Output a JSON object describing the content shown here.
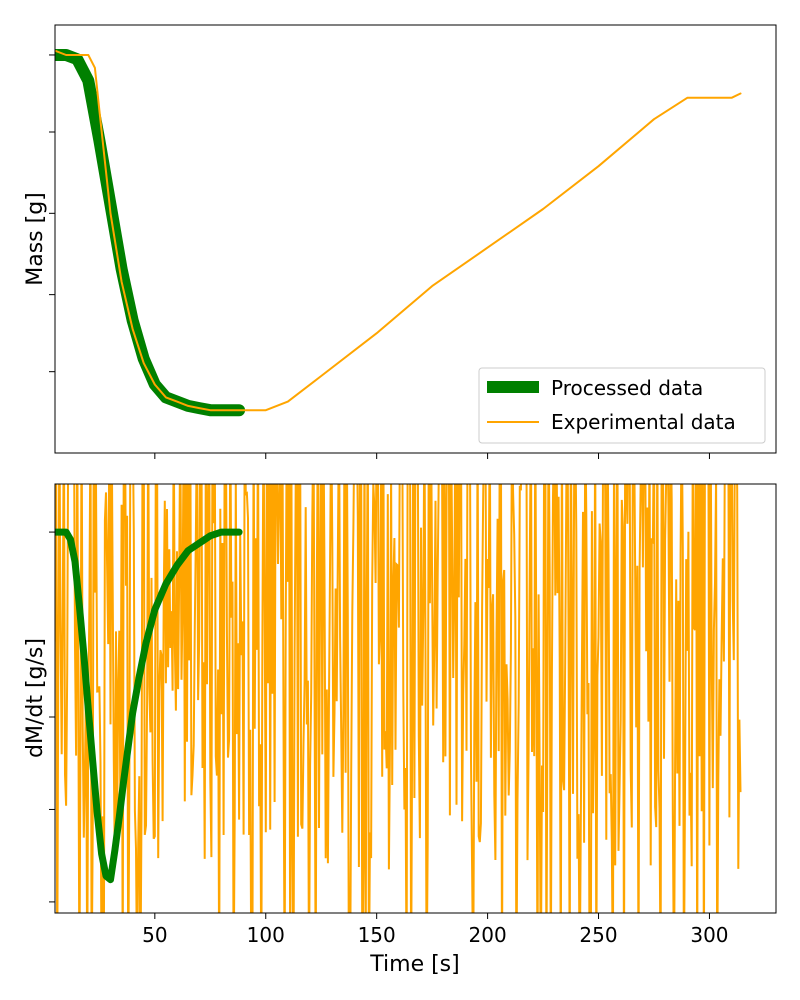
{
  "chart_data": [
    {
      "type": "line",
      "ylabel": "Mass [g]",
      "xlabel": "",
      "xlim": [
        5,
        330
      ],
      "x_ticks": [
        50,
        100,
        150,
        200,
        250,
        300
      ],
      "ylim": [
        0,
        1
      ],
      "y_ticks": [
        0.93,
        0.75,
        0.56,
        0.37,
        0.19
      ],
      "y_tick_labels_shown": false,
      "grid": false,
      "legend_position": "lower-right",
      "legend": [
        "Processed data",
        "Experimental data"
      ],
      "series": [
        {
          "name": "Processed data",
          "color": "#008000",
          "x": [
            5,
            10,
            15,
            20,
            25,
            30,
            35,
            40,
            45,
            50,
            55,
            60,
            65,
            70,
            75,
            80,
            85,
            88
          ],
          "y": [
            0.93,
            0.93,
            0.92,
            0.87,
            0.73,
            0.58,
            0.43,
            0.31,
            0.22,
            0.16,
            0.13,
            0.12,
            0.11,
            0.105,
            0.1,
            0.1,
            0.1,
            0.1
          ]
        },
        {
          "name": "Experimental data",
          "color": "#FFA500",
          "x": [
            5,
            10,
            15,
            20,
            23,
            25,
            30,
            35,
            40,
            45,
            50,
            55,
            60,
            65,
            70,
            75,
            80,
            85,
            90,
            95,
            100,
            110,
            125,
            150,
            175,
            200,
            225,
            250,
            275,
            290,
            300,
            310,
            314
          ],
          "y": [
            0.94,
            0.93,
            0.93,
            0.93,
            0.9,
            0.8,
            0.56,
            0.4,
            0.29,
            0.21,
            0.16,
            0.13,
            0.12,
            0.11,
            0.105,
            0.1,
            0.1,
            0.1,
            0.1,
            0.1,
            0.1,
            0.12,
            0.18,
            0.28,
            0.39,
            0.48,
            0.57,
            0.67,
            0.78,
            0.83,
            0.83,
            0.83,
            0.84
          ]
        }
      ]
    },
    {
      "type": "line",
      "ylabel": "dM/dt [g/s]",
      "xlabel": "Time [s]",
      "xlim": [
        5,
        330
      ],
      "x_ticks": [
        50,
        100,
        150,
        200,
        250,
        300
      ],
      "ylim": [
        -1.03,
        0.13
      ],
      "y_ticks": [
        0,
        -0.5,
        -0.75,
        -1.0
      ],
      "y_tick_labels_shown": false,
      "grid": false,
      "series": [
        {
          "name": "Experimental data",
          "color": "#FFA500",
          "style": "dense noise clipped to axes",
          "x_range": [
            5,
            314
          ],
          "noise_envelope": [
            -1.03,
            0.13
          ]
        },
        {
          "name": "Processed data",
          "color": "#008000",
          "x": [
            5,
            8,
            10,
            12,
            14,
            16,
            18,
            20,
            22,
            24,
            26,
            28,
            30,
            32,
            34,
            36,
            38,
            40,
            43,
            46,
            50,
            55,
            60,
            65,
            70,
            75,
            80,
            88
          ],
          "y": [
            0,
            0,
            0,
            -0.02,
            -0.08,
            -0.2,
            -0.33,
            -0.48,
            -0.62,
            -0.76,
            -0.87,
            -0.93,
            -0.94,
            -0.86,
            -0.77,
            -0.67,
            -0.58,
            -0.49,
            -0.39,
            -0.3,
            -0.21,
            -0.14,
            -0.09,
            -0.05,
            -0.03,
            -0.01,
            0,
            0
          ]
        }
      ]
    }
  ]
}
